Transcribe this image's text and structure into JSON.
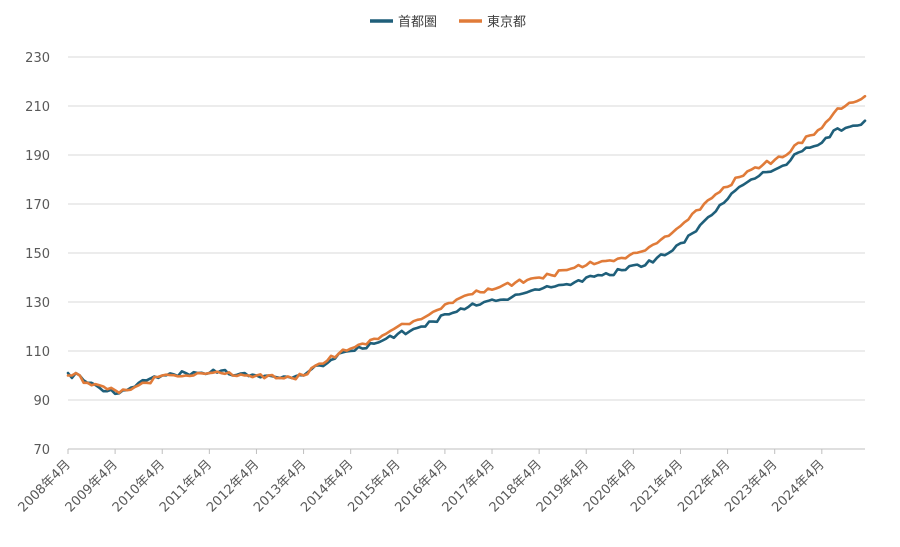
{
  "chart_data": {
    "type": "line",
    "title": "",
    "xlabel": "",
    "ylabel": "",
    "ylim": [
      70,
      230
    ],
    "y_ticks": [
      70,
      90,
      110,
      130,
      150,
      170,
      190,
      210,
      230
    ],
    "x_tick_labels": [
      "2008年4月",
      "2009年4月",
      "2010年4月",
      "2011年4月",
      "2012年4月",
      "2013年4月",
      "2014年4月",
      "2015年4月",
      "2016年4月",
      "2017年4月",
      "2018年4月",
      "2019年4月",
      "2020年4月",
      "2021年4月",
      "2022年4月",
      "2023年4月",
      "2024年4月"
    ],
    "x_start": "2008-04",
    "x_end": "2025-03",
    "grid": "horizontal",
    "legend_position": "top-center",
    "colors": {
      "首都圏": "#1f5f7a",
      "東京都": "#e07b39"
    },
    "series": [
      {
        "name": "首都圏",
        "anchors": [
          [
            "2008-04",
            101
          ],
          [
            "2008-05",
            99
          ],
          [
            "2008-06",
            101
          ],
          [
            "2008-07",
            100
          ],
          [
            "2008-08",
            98
          ],
          [
            "2008-09",
            97
          ],
          [
            "2008-10",
            97
          ],
          [
            "2008-12",
            95
          ],
          [
            "2009-04",
            92.5
          ],
          [
            "2009-07",
            94
          ],
          [
            "2009-10",
            97
          ],
          [
            "2009-12",
            98
          ],
          [
            "2010-04",
            100
          ],
          [
            "2010-10",
            101
          ],
          [
            "2011-01",
            101
          ],
          [
            "2011-04",
            101
          ],
          [
            "2011-07",
            102
          ],
          [
            "2011-10",
            100
          ],
          [
            "2012-01",
            101
          ],
          [
            "2012-04",
            100
          ],
          [
            "2012-07",
            100
          ],
          [
            "2012-10",
            99
          ],
          [
            "2013-01",
            99
          ],
          [
            "2013-04",
            100
          ],
          [
            "2013-07",
            104
          ],
          [
            "2013-10",
            105
          ],
          [
            "2014-01",
            109
          ],
          [
            "2014-04",
            110
          ],
          [
            "2014-07",
            111
          ],
          [
            "2014-10",
            113
          ],
          [
            "2015-01",
            115
          ],
          [
            "2015-04",
            117
          ],
          [
            "2015-07",
            118
          ],
          [
            "2015-10",
            120
          ],
          [
            "2016-01",
            122
          ],
          [
            "2016-04",
            125
          ],
          [
            "2016-07",
            126
          ],
          [
            "2016-10",
            128
          ],
          [
            "2017-01",
            129
          ],
          [
            "2017-04",
            131
          ],
          [
            "2017-07",
            131
          ],
          [
            "2017-10",
            133
          ],
          [
            "2018-01",
            134
          ],
          [
            "2018-04",
            135
          ],
          [
            "2018-07",
            136
          ],
          [
            "2018-10",
            137
          ],
          [
            "2019-01",
            138
          ],
          [
            "2019-04",
            140
          ],
          [
            "2019-07",
            141
          ],
          [
            "2019-10",
            141
          ],
          [
            "2020-01",
            143
          ],
          [
            "2020-04",
            145
          ],
          [
            "2020-07",
            145
          ],
          [
            "2020-10",
            148
          ],
          [
            "2021-01",
            150
          ],
          [
            "2021-04",
            154
          ],
          [
            "2021-07",
            158
          ],
          [
            "2021-10",
            163
          ],
          [
            "2022-01",
            167
          ],
          [
            "2022-04",
            172
          ],
          [
            "2022-07",
            177
          ],
          [
            "2022-10",
            180
          ],
          [
            "2023-01",
            183
          ],
          [
            "2023-04",
            184
          ],
          [
            "2023-07",
            186
          ],
          [
            "2023-10",
            191
          ],
          [
            "2024-01",
            193
          ],
          [
            "2024-04",
            195
          ],
          [
            "2024-07",
            200
          ],
          [
            "2024-10",
            201
          ],
          [
            "2025-01",
            202
          ],
          [
            "2025-03",
            204
          ]
        ]
      },
      {
        "name": "東京都",
        "anchors": [
          [
            "2008-04",
            100
          ],
          [
            "2008-05",
            100
          ],
          [
            "2008-06",
            101
          ],
          [
            "2008-07",
            100
          ],
          [
            "2008-08",
            97
          ],
          [
            "2008-09",
            97
          ],
          [
            "2008-10",
            96
          ],
          [
            "2008-12",
            96
          ],
          [
            "2009-04",
            94
          ],
          [
            "2009-07",
            94
          ],
          [
            "2009-10",
            96
          ],
          [
            "2009-12",
            97
          ],
          [
            "2010-04",
            100
          ],
          [
            "2010-10",
            100
          ],
          [
            "2011-01",
            101
          ],
          [
            "2011-04",
            101
          ],
          [
            "2011-07",
            101
          ],
          [
            "2011-10",
            100
          ],
          [
            "2012-01",
            100
          ],
          [
            "2012-04",
            100
          ],
          [
            "2012-07",
            100
          ],
          [
            "2012-10",
            99
          ],
          [
            "2013-01",
            99
          ],
          [
            "2013-04",
            100
          ],
          [
            "2013-07",
            104
          ],
          [
            "2013-10",
            106
          ],
          [
            "2014-01",
            109
          ],
          [
            "2014-04",
            111
          ],
          [
            "2014-07",
            113
          ],
          [
            "2014-10",
            115
          ],
          [
            "2015-01",
            117
          ],
          [
            "2015-04",
            120
          ],
          [
            "2015-07",
            121
          ],
          [
            "2015-10",
            123
          ],
          [
            "2016-01",
            126
          ],
          [
            "2016-04",
            129
          ],
          [
            "2016-07",
            131
          ],
          [
            "2016-10",
            133
          ],
          [
            "2017-01",
            134
          ],
          [
            "2017-04",
            135
          ],
          [
            "2017-07",
            137
          ],
          [
            "2017-10",
            138
          ],
          [
            "2018-01",
            139
          ],
          [
            "2018-04",
            140
          ],
          [
            "2018-07",
            141
          ],
          [
            "2018-10",
            143
          ],
          [
            "2019-01",
            144
          ],
          [
            "2019-04",
            145
          ],
          [
            "2019-07",
            146
          ],
          [
            "2019-10",
            147
          ],
          [
            "2020-01",
            148
          ],
          [
            "2020-04",
            150
          ],
          [
            "2020-07",
            151
          ],
          [
            "2020-10",
            154
          ],
          [
            "2021-01",
            157
          ],
          [
            "2021-04",
            161
          ],
          [
            "2021-07",
            166
          ],
          [
            "2021-10",
            170
          ],
          [
            "2022-01",
            174
          ],
          [
            "2022-04",
            177
          ],
          [
            "2022-07",
            181
          ],
          [
            "2022-10",
            184
          ],
          [
            "2023-01",
            186
          ],
          [
            "2023-04",
            188
          ],
          [
            "2023-07",
            190
          ],
          [
            "2023-10",
            195
          ],
          [
            "2024-01",
            198
          ],
          [
            "2024-04",
            201
          ],
          [
            "2024-07",
            207
          ],
          [
            "2024-10",
            210
          ],
          [
            "2025-01",
            212
          ],
          [
            "2025-03",
            214
          ]
        ]
      }
    ]
  }
}
